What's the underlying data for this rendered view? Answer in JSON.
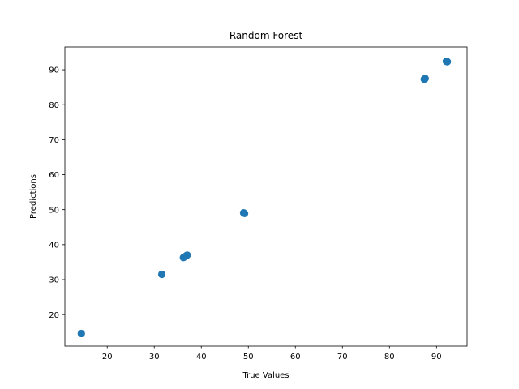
{
  "chart_data": {
    "type": "scatter",
    "title": "Random Forest",
    "xlabel": "True Values",
    "ylabel": "Predictions",
    "xlim": [
      11,
      96.5
    ],
    "ylim": [
      11,
      96.5
    ],
    "xticks": [
      20,
      30,
      40,
      50,
      60,
      70,
      80,
      90
    ],
    "yticks": [
      20,
      30,
      40,
      50,
      60,
      70,
      80,
      90
    ],
    "grid": false,
    "marker_color": "#1f77b4",
    "points": [
      {
        "x": 14.5,
        "y": 14.6
      },
      {
        "x": 31.6,
        "y": 31.5
      },
      {
        "x": 36.2,
        "y": 36.3
      },
      {
        "x": 36.8,
        "y": 36.8
      },
      {
        "x": 37.0,
        "y": 37.0
      },
      {
        "x": 49.0,
        "y": 49.1
      },
      {
        "x": 49.2,
        "y": 48.9
      },
      {
        "x": 87.4,
        "y": 87.3
      },
      {
        "x": 87.6,
        "y": 87.5
      },
      {
        "x": 92.1,
        "y": 92.4
      },
      {
        "x": 92.3,
        "y": 92.3
      }
    ]
  }
}
